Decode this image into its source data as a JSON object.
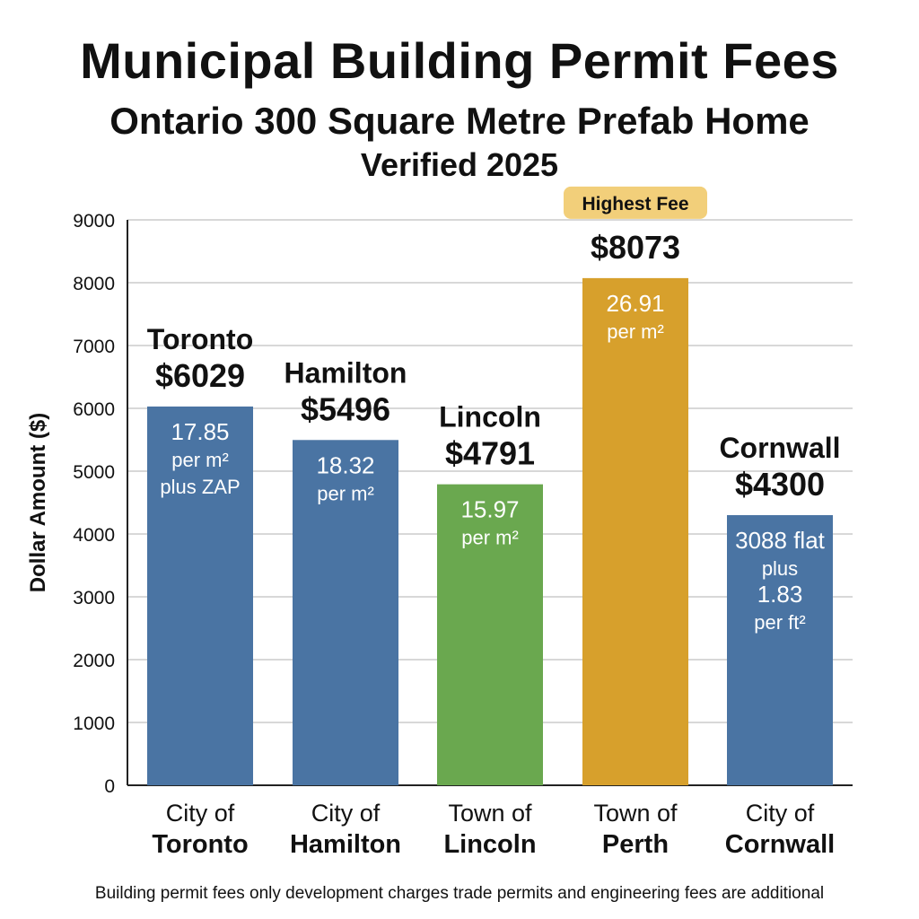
{
  "header": {
    "title": "Municipal Building Permit Fees",
    "subtitle": "Ontario 300 Square Metre Prefab Home",
    "subtitle2": "Verified 2025"
  },
  "footnote": "Building permit fees only development charges trade permits and engineering fees are additional",
  "colors": {
    "blue": "#4a74a3",
    "green": "#6aa84f",
    "gold": "#d7a02c",
    "badge": "#f2cf7a",
    "grid": "#cccccc",
    "axis": "#222222"
  },
  "chart_data": {
    "type": "bar",
    "title": "Municipal Building Permit Fees",
    "ylabel": "Dollar Amount ($)",
    "xlabel": "",
    "ylim": [
      0,
      9000
    ],
    "yticks": [
      0,
      1000,
      2000,
      3000,
      4000,
      5000,
      6000,
      7000,
      8000,
      9000
    ],
    "grid": true,
    "categories": [
      {
        "line1": "City of",
        "line2": "Toronto"
      },
      {
        "line1": "City of",
        "line2": "Hamilton"
      },
      {
        "line1": "Town of",
        "line2": "Lincoln"
      },
      {
        "line1": "Town of",
        "line2": "Perth"
      },
      {
        "line1": "City of",
        "line2": "Cornwall"
      }
    ],
    "bars": [
      {
        "name": "Toronto",
        "value": 6029,
        "value_label": "$6029",
        "color": "blue",
        "inner": [
          "17.85",
          "per m²",
          "plus ZAP"
        ]
      },
      {
        "name": "Hamilton",
        "value": 5496,
        "value_label": "$5496",
        "color": "blue",
        "inner": [
          "18.32",
          "per m²"
        ]
      },
      {
        "name": "Lincoln",
        "value": 4791,
        "value_label": "$4791",
        "color": "green",
        "inner": [
          "15.97",
          "per m²"
        ]
      },
      {
        "name": "",
        "value": 8073,
        "value_label": "$8073",
        "color": "gold",
        "inner": [
          "26.91",
          "per m²"
        ],
        "badge": "Highest Fee"
      },
      {
        "name": "Cornwall",
        "value": 4300,
        "value_label": "$4300",
        "color": "blue",
        "inner": [
          "3088 flat",
          "plus",
          "1.83",
          "per ft²"
        ]
      }
    ]
  }
}
